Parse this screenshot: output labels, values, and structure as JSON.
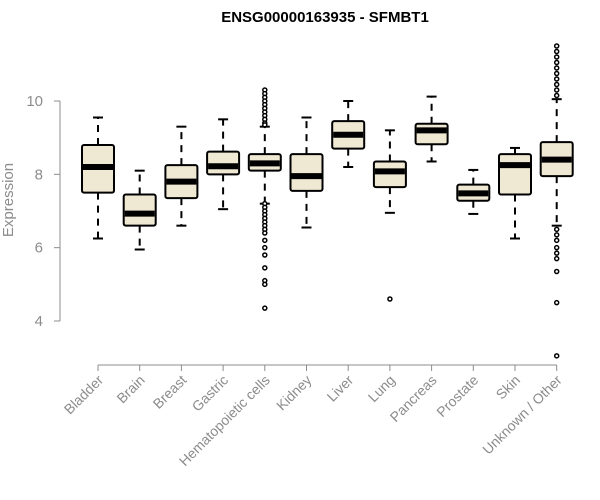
{
  "chart_data": {
    "type": "boxplot",
    "title": "ENSG00000163935 - SFMBT1",
    "ylabel": "Expression",
    "xlabel": "",
    "ylim": [
      2.8,
      11.8
    ],
    "yticks": [
      4,
      6,
      8,
      10
    ],
    "categories": [
      "Bladder",
      "Brain",
      "Breast",
      "Gastric",
      "Hematopoietic cells",
      "Kidney",
      "Liver",
      "Lung",
      "Pancreas",
      "Prostate",
      "Skin",
      "Unknown / Other"
    ],
    "box_fill": "#efe8d2",
    "boxes": [
      {
        "name": "Bladder",
        "min": 6.25,
        "q1": 7.5,
        "median": 8.2,
        "q3": 8.8,
        "max": 9.55,
        "outliers": []
      },
      {
        "name": "Brain",
        "min": 5.95,
        "q1": 6.6,
        "median": 6.93,
        "q3": 7.45,
        "max": 8.1,
        "outliers": []
      },
      {
        "name": "Breast",
        "min": 6.6,
        "q1": 7.35,
        "median": 7.8,
        "q3": 8.25,
        "max": 9.3,
        "outliers": []
      },
      {
        "name": "Gastric",
        "min": 7.05,
        "q1": 8.0,
        "median": 8.22,
        "q3": 8.62,
        "max": 9.5,
        "outliers": []
      },
      {
        "name": "Hematopoietic cells",
        "min": 7.2,
        "q1": 8.1,
        "median": 8.3,
        "q3": 8.55,
        "max": 9.3,
        "outliers": [
          10.3,
          10.2,
          10.1,
          10.0,
          9.9,
          9.8,
          9.7,
          9.6,
          9.5,
          9.4,
          9.35,
          7.2,
          7.1,
          7.0,
          6.9,
          6.8,
          6.7,
          6.6,
          6.5,
          6.4,
          6.2,
          6.0,
          5.8,
          5.45,
          5.1,
          5.0,
          4.35
        ]
      },
      {
        "name": "Kidney",
        "min": 6.55,
        "q1": 7.55,
        "median": 7.95,
        "q3": 8.55,
        "max": 9.55,
        "outliers": []
      },
      {
        "name": "Liver",
        "min": 8.2,
        "q1": 8.7,
        "median": 9.08,
        "q3": 9.45,
        "max": 10.0,
        "outliers": []
      },
      {
        "name": "Lung",
        "min": 6.95,
        "q1": 7.65,
        "median": 8.08,
        "q3": 8.35,
        "max": 9.2,
        "outliers": [
          4.6
        ]
      },
      {
        "name": "Pancreas",
        "min": 8.35,
        "q1": 8.82,
        "median": 9.2,
        "q3": 9.38,
        "max": 10.12,
        "outliers": []
      },
      {
        "name": "Prostate",
        "min": 6.92,
        "q1": 7.28,
        "median": 7.48,
        "q3": 7.72,
        "max": 8.12,
        "outliers": []
      },
      {
        "name": "Skin",
        "min": 6.25,
        "q1": 7.45,
        "median": 8.25,
        "q3": 8.55,
        "max": 8.72,
        "outliers": []
      },
      {
        "name": "Unknown / Other",
        "min": 6.6,
        "q1": 7.95,
        "median": 8.4,
        "q3": 8.88,
        "max": 10.05,
        "outliers": [
          11.5,
          11.35,
          11.2,
          11.05,
          10.9,
          10.75,
          10.6,
          10.45,
          10.3,
          10.15,
          6.5,
          6.35,
          6.2,
          6.0,
          5.85,
          5.7,
          5.35,
          4.5,
          3.05
        ]
      }
    ]
  }
}
